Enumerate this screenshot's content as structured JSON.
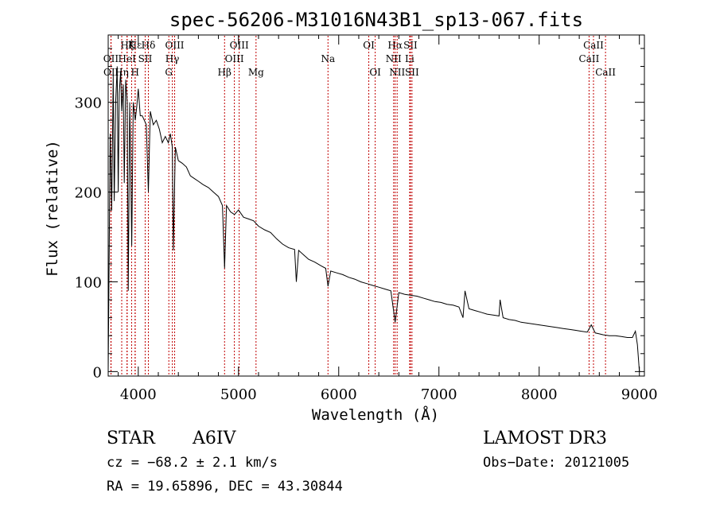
{
  "chart_data": {
    "type": "line",
    "title": "spec-56206-M31016N43B1_sp13-067.fits",
    "xlabel": "Wavelength (Å)",
    "ylabel": "Flux (relative)",
    "xlim": [
      3700,
      9050
    ],
    "ylim": [
      -5,
      375
    ],
    "x_ticks": [
      4000,
      5000,
      6000,
      7000,
      8000,
      9000
    ],
    "x_tick_labels": [
      "4000",
      "5000",
      "6000",
      "7000",
      "8000",
      "9000"
    ],
    "y_ticks": [
      0,
      100,
      200,
      300
    ],
    "y_tick_labels": [
      "0",
      "100",
      "200",
      "300"
    ],
    "grid": false,
    "series": [
      {
        "name": "flux",
        "x": [
          3700,
          3720,
          3735,
          3750,
          3760,
          3775,
          3790,
          3800,
          3810,
          3825,
          3835,
          3850,
          3860,
          3875,
          3890,
          3900,
          3915,
          3925,
          3935,
          3950,
          3960,
          3970,
          3985,
          4000,
          4020,
          4040,
          4060,
          4080,
          4101,
          4120,
          4150,
          4180,
          4210,
          4240,
          4270,
          4300,
          4320,
          4340,
          4350,
          4370,
          4400,
          4440,
          4480,
          4520,
          4560,
          4600,
          4650,
          4700,
          4750,
          4800,
          4840,
          4861,
          4880,
          4920,
          4960,
          5000,
          5050,
          5100,
          5150,
          5200,
          5260,
          5320,
          5380,
          5440,
          5500,
          5560,
          5577,
          5600,
          5650,
          5700,
          5760,
          5820,
          5870,
          5893,
          5920,
          5980,
          6040,
          6100,
          6160,
          6220,
          6280,
          6340,
          6400,
          6460,
          6520,
          6563,
          6600,
          6660,
          6720,
          6780,
          6840,
          6900,
          6960,
          7020,
          7080,
          7140,
          7200,
          7240,
          7260,
          7300,
          7360,
          7420,
          7480,
          7540,
          7600,
          7610,
          7640,
          7700,
          7760,
          7820,
          7880,
          7940,
          8000,
          8060,
          8120,
          8180,
          8240,
          8300,
          8360,
          8420,
          8480,
          8520,
          8560,
          8600,
          8640,
          8700,
          8760,
          8820,
          8880,
          8930,
          8960,
          8980,
          9000
        ],
        "y": [
          0,
          265,
          180,
          330,
          190,
          300,
          340,
          200,
          310,
          335,
          290,
          320,
          210,
          325,
          300,
          90,
          300,
          230,
          140,
          300,
          290,
          280,
          295,
          315,
          285,
          285,
          280,
          275,
          200,
          290,
          275,
          280,
          270,
          255,
          262,
          255,
          265,
          250,
          135,
          250,
          235,
          232,
          228,
          218,
          215,
          212,
          208,
          205,
          200,
          195,
          185,
          115,
          185,
          178,
          175,
          180,
          172,
          170,
          168,
          162,
          158,
          155,
          148,
          142,
          138,
          136,
          100,
          135,
          130,
          125,
          122,
          118,
          115,
          95,
          112,
          110,
          108,
          105,
          103,
          100,
          98,
          96,
          94,
          92,
          90,
          55,
          88,
          86,
          85,
          84,
          82,
          80,
          78,
          77,
          75,
          74,
          72,
          60,
          90,
          70,
          68,
          66,
          64,
          63,
          62,
          80,
          60,
          58,
          57,
          55,
          54,
          53,
          52,
          51,
          50,
          49,
          48,
          47,
          46,
          45,
          44,
          52,
          43,
          42,
          41,
          40,
          40,
          39,
          38,
          38,
          45,
          30,
          0
        ]
      }
    ],
    "line_markers": [
      {
        "label": "Hε",
        "x": 3970,
        "row": 1
      },
      {
        "label": "K",
        "x": 3934,
        "row": 1
      },
      {
        "label": "H",
        "x": 3968,
        "row": 3
      },
      {
        "label": "Hδ",
        "x": 4101,
        "row": 1
      },
      {
        "label": "OII",
        "x": 3727,
        "row": 2
      },
      {
        "label": "OII",
        "x": 3729,
        "row": 3
      },
      {
        "label": "HeI",
        "x": 3888,
        "row": 2
      },
      {
        "label": "SII",
        "x": 4069,
        "row": 2
      },
      {
        "label": "Hζ",
        "x": 3889,
        "row": 1
      },
      {
        "label": "Hη",
        "x": 3835,
        "row": 3
      },
      {
        "label": "OIII",
        "x": 4363,
        "row": 1
      },
      {
        "label": "Hγ",
        "x": 4340,
        "row": 2
      },
      {
        "label": "G",
        "x": 4305,
        "row": 3
      },
      {
        "label": "OIII",
        "x": 5007,
        "row": 1
      },
      {
        "label": "OIII",
        "x": 4959,
        "row": 2
      },
      {
        "label": "Hβ",
        "x": 4861,
        "row": 3
      },
      {
        "label": "Mg",
        "x": 5175,
        "row": 3
      },
      {
        "label": "Na",
        "x": 5893,
        "row": 2
      },
      {
        "label": "OI",
        "x": 6300,
        "row": 1
      },
      {
        "label": "OI",
        "x": 6364,
        "row": 3
      },
      {
        "label": "Hα",
        "x": 6563,
        "row": 1
      },
      {
        "label": "SII",
        "x": 6716,
        "row": 1
      },
      {
        "label": "NII",
        "x": 6548,
        "row": 2
      },
      {
        "label": "Li",
        "x": 6708,
        "row": 2
      },
      {
        "label": "NII",
        "x": 6583,
        "row": 3
      },
      {
        "label": "SII",
        "x": 6731,
        "row": 3
      },
      {
        "label": "CaII",
        "x": 8542,
        "row": 1
      },
      {
        "label": "CaII",
        "x": 8498,
        "row": 2
      },
      {
        "label": "CaII",
        "x": 8662,
        "row": 3
      }
    ]
  },
  "info": {
    "object_class": "STAR",
    "subclass": "A6IV",
    "survey": "LAMOST DR3",
    "cz": "cz = −68.2 ± 2.1 km/s",
    "obs_date": "Obs−Date: 20121005",
    "coords": "RA =  19.65896, DEC =  43.30844"
  }
}
